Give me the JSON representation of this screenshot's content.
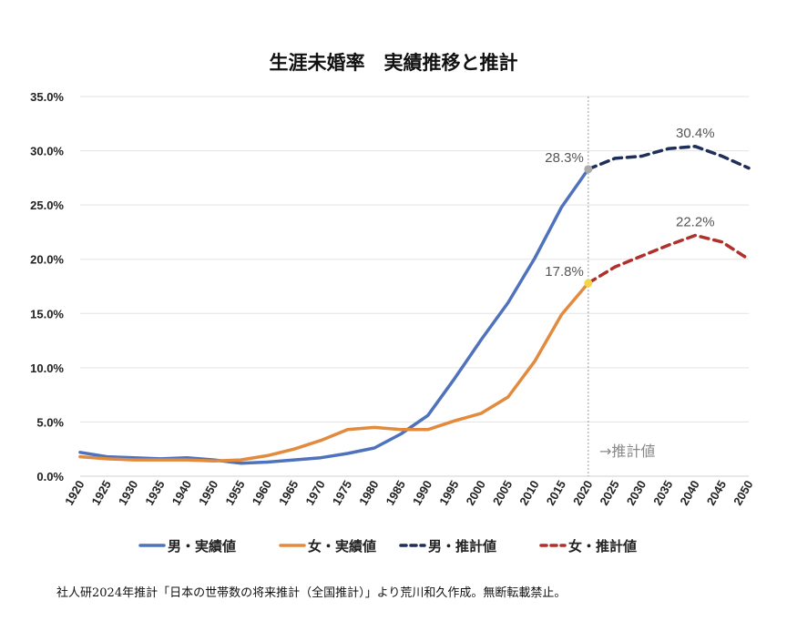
{
  "chart_data": {
    "type": "line",
    "title": "生涯未婚率　実績推移と推計",
    "xlabel": "",
    "ylabel": "",
    "x": [
      1920,
      1925,
      1930,
      1935,
      1940,
      1950,
      1955,
      1960,
      1965,
      1970,
      1975,
      1980,
      1985,
      1990,
      1995,
      2000,
      2005,
      2010,
      2015,
      2020,
      2025,
      2030,
      2035,
      2040,
      2045,
      2050
    ],
    "x_tick_labels": [
      "1920",
      "1925",
      "1930",
      "1935",
      "1940",
      "1950",
      "1955",
      "1960",
      "1965",
      "1970",
      "1975",
      "1980",
      "1985",
      "1990",
      "1995",
      "2000",
      "2005",
      "2010",
      "2015",
      "2020",
      "2025",
      "2030",
      "2035",
      "2040",
      "2045",
      "2050"
    ],
    "ylim": [
      0,
      35
    ],
    "y_ticks": [
      0,
      5,
      10,
      15,
      20,
      25,
      30,
      35
    ],
    "y_tick_labels": [
      "0.0%",
      "5.0%",
      "10.0%",
      "15.0%",
      "20.0%",
      "25.0%",
      "30.0%",
      "35.0%"
    ],
    "grid": true,
    "legend_position": "bottom",
    "series": [
      {
        "name": "男・実績値",
        "color": "#4f72bd",
        "style": "solid",
        "values": [
          2.2,
          1.8,
          1.7,
          1.6,
          1.7,
          1.5,
          1.2,
          1.3,
          1.5,
          1.7,
          2.1,
          2.6,
          3.9,
          5.6,
          9.0,
          12.6,
          16.0,
          20.1,
          24.8,
          28.3,
          null,
          null,
          null,
          null,
          null,
          null
        ]
      },
      {
        "name": "女・実績値",
        "color": "#e28b3f",
        "style": "solid",
        "values": [
          1.8,
          1.6,
          1.5,
          1.5,
          1.5,
          1.4,
          1.5,
          1.9,
          2.5,
          3.3,
          4.3,
          4.5,
          4.3,
          4.3,
          5.1,
          5.8,
          7.3,
          10.6,
          14.9,
          17.8,
          null,
          null,
          null,
          null,
          null,
          null
        ]
      },
      {
        "name": "男・推計値",
        "color": "#1f2f5a",
        "style": "dashed",
        "values": [
          null,
          null,
          null,
          null,
          null,
          null,
          null,
          null,
          null,
          null,
          null,
          null,
          null,
          null,
          null,
          null,
          null,
          null,
          null,
          28.3,
          29.3,
          29.5,
          30.2,
          30.4,
          29.5,
          28.4
        ]
      },
      {
        "name": "女・推計値",
        "color": "#b0302b",
        "style": "dashed",
        "values": [
          null,
          null,
          null,
          null,
          null,
          null,
          null,
          null,
          null,
          null,
          null,
          null,
          null,
          null,
          null,
          null,
          null,
          null,
          null,
          17.8,
          19.3,
          20.3,
          21.3,
          22.2,
          21.6,
          20.0
        ]
      }
    ],
    "annotations": [
      {
        "text": "28.3%",
        "x": 2020,
        "y": 28.3
      },
      {
        "text": "17.8%",
        "x": 2020,
        "y": 17.8
      },
      {
        "text": "30.4%",
        "x": 2040,
        "y": 30.4
      },
      {
        "text": "22.2%",
        "x": 2040,
        "y": 22.2
      }
    ],
    "projection_label": "→推計値",
    "projection_divider_x": 2020
  },
  "source_note": "社人研2024年推計「日本の世帯数の将来推計（全国推計）」より荒川和久作成。無断転載禁止。"
}
